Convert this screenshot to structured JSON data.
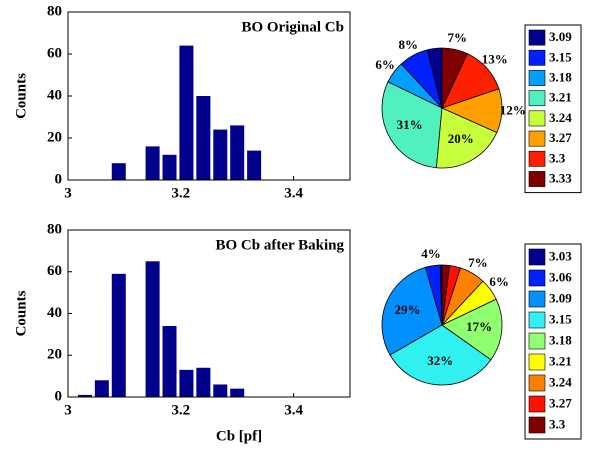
{
  "chart_data": [
    {
      "type": "bar",
      "title": "BO Original Cb",
      "ylabel": "Counts",
      "x": [
        3.09,
        3.15,
        3.18,
        3.21,
        3.24,
        3.27,
        3.3,
        3.33
      ],
      "values": [
        8,
        16,
        12,
        64,
        40,
        24,
        26,
        14
      ],
      "color": "#00008b",
      "xlim": [
        3,
        3.5
      ],
      "ylim": [
        0,
        80
      ],
      "xticks": [
        3,
        3.2,
        3.4
      ],
      "yticks": [
        0,
        20,
        40,
        60,
        80
      ]
    },
    {
      "type": "pie",
      "categories": [
        "3.09",
        "3.15",
        "3.18",
        "3.21",
        "3.24",
        "3.27",
        "3.3",
        "3.33"
      ],
      "values": [
        4,
        8,
        6,
        31,
        20,
        12,
        13,
        7
      ],
      "value_labels": [
        null,
        "8%",
        "6%",
        "31%",
        "20%",
        "12%",
        "13%",
        "7%"
      ],
      "colors": [
        "#00008f",
        "#0020ff",
        "#00a0ff",
        "#50f0c0",
        "#c8ff3c",
        "#ffa000",
        "#ff2000",
        "#800000"
      ]
    },
    {
      "type": "bar",
      "title": "BO Cb after Baking",
      "ylabel": "Counts",
      "xlabel": "Cb [pf]",
      "x": [
        3.03,
        3.06,
        3.09,
        3.15,
        3.18,
        3.21,
        3.24,
        3.27,
        3.3
      ],
      "values": [
        1,
        8,
        59,
        65,
        34,
        13,
        14,
        6,
        4
      ],
      "color": "#00008b",
      "xlim": [
        3,
        3.5
      ],
      "ylim": [
        0,
        80
      ],
      "xticks": [
        3,
        3.2,
        3.4
      ],
      "yticks": [
        0,
        20,
        40,
        60,
        80
      ]
    },
    {
      "type": "pie",
      "categories": [
        "3.03",
        "3.06",
        "3.09",
        "3.15",
        "3.18",
        "3.21",
        "3.24",
        "3.27",
        "3.3"
      ],
      "values": [
        0.5,
        4,
        29,
        32,
        17,
        6,
        7,
        3,
        2
      ],
      "value_labels": [
        null,
        "4%",
        "29%",
        "32%",
        "17%",
        "6%",
        "7%",
        null,
        null
      ],
      "colors": [
        "#00008f",
        "#0020ff",
        "#0090ff",
        "#30f0f0",
        "#90ff70",
        "#ffff00",
        "#ff8000",
        "#ff1000",
        "#800000"
      ]
    }
  ]
}
